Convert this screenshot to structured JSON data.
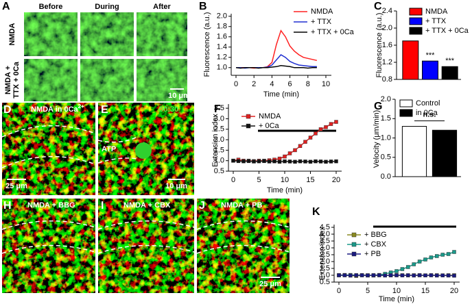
{
  "figure": {
    "panel_labels": [
      "A",
      "B",
      "C",
      "D",
      "E",
      "F",
      "G",
      "H",
      "I",
      "J",
      "K"
    ]
  },
  "images": {
    "A": {
      "columns": [
        "Before",
        "During",
        "After"
      ],
      "rows": [
        [
          "NMDA"
        ],
        [
          "NMDA +",
          "TTX + 0Ca"
        ]
      ],
      "scale_bar": "10 μm"
    },
    "D": {
      "label": "NMDA in 0Ca",
      "label_superscript": "2+",
      "scale_bar": "25 μm"
    },
    "E": {
      "timestamp": "00:30",
      "annotation": "ATP",
      "scale_bar": "10 μm"
    },
    "H": {
      "label": "NMDA + BBG"
    },
    "I": {
      "label": "NMDA + CBX"
    },
    "J": {
      "label": "NMDA + PB",
      "scale_bar": "25 μm"
    }
  },
  "chart_data": [
    {
      "type": "line",
      "xlabel": "Time (min)",
      "ylabel": "Fluorescence (a.u.)",
      "x": [
        0,
        0.5,
        1,
        1.5,
        2,
        2.5,
        3,
        3.5,
        4,
        4.5,
        5,
        5.5,
        6,
        6.5,
        7,
        7.5,
        8,
        8.5,
        9
      ],
      "series": [
        {
          "name": "NMDA",
          "color": "#ff2020",
          "values": [
            1.0,
            1.0,
            1.0,
            1.0,
            0.99,
            1.0,
            1.0,
            1.02,
            1.1,
            1.45,
            1.72,
            1.6,
            1.42,
            1.32,
            1.25,
            1.2,
            1.18,
            1.16,
            1.14
          ]
        },
        {
          "name": "+ TTX",
          "color": "#1f2fd0",
          "values": [
            1.0,
            1.0,
            0.99,
            1.0,
            1.0,
            1.0,
            1.0,
            1.01,
            1.05,
            1.15,
            1.25,
            1.2,
            1.12,
            1.08,
            1.05,
            1.04,
            1.03,
            1.02,
            1.02
          ]
        },
        {
          "name": "+ TTX + 0Ca",
          "color": "#000000",
          "values": [
            1.0,
            0.99,
            1.0,
            1.0,
            1.0,
            0.99,
            1.0,
            1.0,
            1.01,
            1.02,
            1.04,
            1.03,
            1.02,
            1.0,
            1.0,
            1.0,
            0.99,
            1.0,
            1.0
          ]
        }
      ],
      "xlim": [
        0,
        10
      ],
      "xticks": [
        0,
        2,
        4,
        6,
        8,
        10
      ],
      "ylim": [
        0.85,
        2.05
      ],
      "yticks": [
        {
          "value": 1,
          "label": "1.0"
        },
        1.2,
        1.4,
        1.6,
        1.8,
        {
          "value": 2,
          "label": "2.0"
        }
      ],
      "legend": "upper right"
    },
    {
      "type": "bar",
      "ylabel": "Fluorescence (a.u.)",
      "categories": [
        "NMDA",
        "+ TTX",
        "+ TTX + 0Ca"
      ],
      "values": [
        1.7,
        1.23,
        1.1
      ],
      "colors": [
        "#ff0000",
        "#0000ff",
        "#000000"
      ],
      "annotations": [
        null,
        "***",
        "***"
      ],
      "ylim": [
        0.8,
        2.4
      ],
      "yticks": [
        0.8,
        1.2,
        1.6,
        {
          "value": 2,
          "label": "2.0"
        },
        2.4
      ],
      "legend": "upper right"
    },
    {
      "type": "line",
      "markers": "square",
      "xlabel": "Time (min)",
      "ylabel": "Extension index",
      "x": [
        0,
        1,
        2,
        3,
        4,
        5,
        6,
        7,
        8,
        9,
        10,
        11,
        12,
        13,
        14,
        15,
        16,
        17,
        18,
        19,
        20
      ],
      "series": [
        {
          "name": "NMDA",
          "color": "#e02020",
          "values": [
            1.0,
            1.05,
            1.0,
            1.0,
            0.98,
            1.0,
            1.0,
            1.02,
            1.05,
            1.1,
            1.2,
            1.35,
            1.5,
            1.7,
            1.9,
            2.1,
            2.3,
            2.5,
            2.6,
            2.75,
            2.85
          ]
        },
        {
          "name": "+ 0Ca",
          "color": "#111111",
          "values": [
            1.0,
            0.98,
            0.97,
            0.98,
            0.96,
            0.97,
            0.98,
            0.96,
            0.97,
            0.95,
            0.97,
            0.96,
            0.95,
            0.97,
            0.96,
            0.95,
            0.97,
            0.96,
            0.95,
            0.96,
            0.97
          ]
        }
      ],
      "xlim": [
        0,
        20
      ],
      "xticks": [
        0,
        5,
        10,
        15,
        20
      ],
      "ylim": [
        0.5,
        3.7
      ],
      "yticks": [
        0.5,
        {
          "value": 1,
          "label": "1.0"
        },
        1.5,
        {
          "value": 2,
          "label": "2.0"
        },
        2.5,
        {
          "value": 3,
          "label": "3.0"
        },
        3.5
      ],
      "legend": "upper left"
    },
    {
      "type": "bar",
      "ylabel": "Velocity (μm/min)",
      "categories": [
        "Control",
        "in 0Ca"
      ],
      "values": [
        1.3,
        1.2
      ],
      "colors": [
        "#ffffff",
        "#000000"
      ],
      "annotation": "n.s.",
      "ylim": [
        0,
        2
      ],
      "yticks": [
        {
          "value": 0,
          "label": "0.0"
        },
        0.5,
        {
          "value": 1,
          "label": "1.0"
        },
        1.5,
        {
          "value": 2,
          "label": "2.0"
        }
      ],
      "legend": "upper left"
    },
    {
      "type": "line",
      "markers": "square",
      "xlabel": "Time (min)",
      "ylabel": "Extension index",
      "x": [
        0,
        1,
        2,
        3,
        4,
        5,
        6,
        7,
        8,
        9,
        10,
        11,
        12,
        13,
        14,
        15,
        16,
        17,
        18,
        19,
        20
      ],
      "series": [
        {
          "name": "+ BBG",
          "color": "#8a8a20",
          "values": [
            1.0,
            1.02,
            0.98,
            0.95,
            1.0,
            1.0,
            0.98,
            1.0,
            1.0,
            0.99,
            1.0,
            1.0,
            0.99,
            1.0,
            1.0,
            0.99,
            1.0,
            1.0,
            0.99,
            1.0,
            1.0
          ]
        },
        {
          "name": "+ CBX",
          "color": "#1a9a8a",
          "values": [
            1.0,
            1.0,
            1.02,
            1.0,
            1.0,
            0.98,
            1.0,
            1.02,
            1.1,
            1.2,
            1.3,
            1.45,
            1.6,
            1.8,
            2.0,
            2.15,
            2.3,
            2.4,
            2.5,
            2.55,
            2.7
          ]
        },
        {
          "name": "+ PB",
          "color": "#1a1a80",
          "values": [
            1.0,
            1.0,
            0.98,
            1.0,
            1.0,
            0.99,
            1.0,
            1.0,
            0.98,
            1.0,
            1.0,
            0.99,
            1.0,
            0.98,
            1.0,
            0.99,
            1.0,
            0.98,
            0.99,
            0.98,
            0.97
          ]
        }
      ],
      "xlim": [
        0,
        20
      ],
      "xticks": [
        0,
        5,
        10,
        15,
        20
      ],
      "ylim": [
        0.5,
        4.7
      ],
      "yticks": [
        0.5,
        {
          "value": 1,
          "label": "1.0"
        },
        1.5,
        {
          "value": 2,
          "label": "2.0"
        },
        2.5,
        {
          "value": 3,
          "label": "3.0"
        },
        3.5,
        {
          "value": 4,
          "label": "4.0"
        },
        4.5
      ],
      "legend": "upper left"
    }
  ]
}
